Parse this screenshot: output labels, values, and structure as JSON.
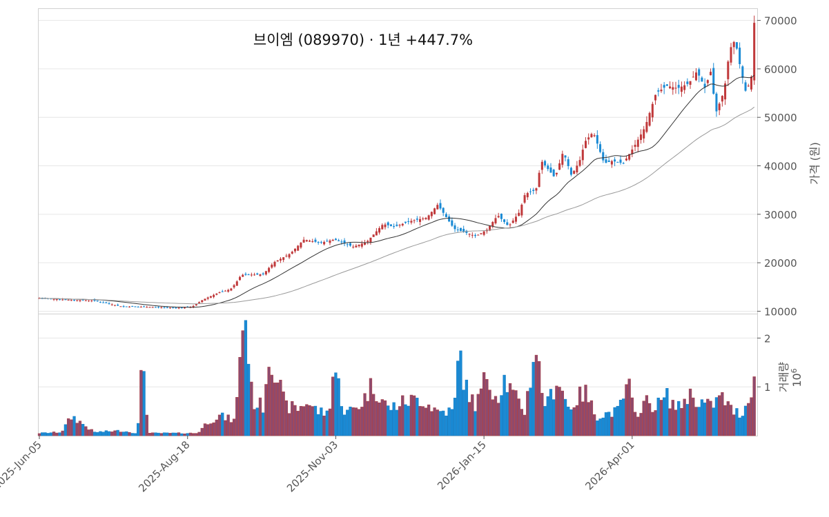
{
  "chart_data": {
    "type": "candlestick",
    "title": "브이엠 (089970)  ·  1년 +447.7%",
    "colors": {
      "up": "#c0393b",
      "down": "#1a8ad4",
      "ma_short": "#333333",
      "ma_long": "#999999",
      "grid": "#e6e6e6"
    },
    "price_panel": {
      "ylabel": "가격 (원)",
      "ylim": [
        9500,
        72500
      ],
      "yticks": [
        10000,
        20000,
        30000,
        40000,
        50000,
        60000,
        70000
      ],
      "yticklabels": [
        "10000",
        "20000",
        "30000",
        "40000",
        "50000",
        "60000",
        "70000"
      ]
    },
    "volume_panel": {
      "ylabel": "거래량",
      "scale_label": "10",
      "scale_exp": "6",
      "ylim": [
        0,
        2.5
      ],
      "yticks": [
        1,
        2
      ],
      "yticklabels": [
        "1",
        "2"
      ]
    },
    "x_axis": {
      "n_days": 247,
      "tick_index": [
        0,
        51,
        102,
        153,
        204
      ],
      "tick_labels": [
        "2025-Jun-05",
        "2025-Aug-18",
        "2025-Nov-03",
        "2026-Jan-15",
        "2026-Apr-01"
      ]
    },
    "price_anchors": [
      [
        0,
        12700
      ],
      [
        12,
        12300
      ],
      [
        20,
        12200
      ],
      [
        25,
        11600
      ],
      [
        30,
        11000
      ],
      [
        38,
        10900
      ],
      [
        45,
        10800
      ],
      [
        52,
        10700
      ],
      [
        56,
        10900
      ],
      [
        60,
        12400
      ],
      [
        66,
        13900
      ],
      [
        70,
        14500
      ],
      [
        72,
        15800
      ],
      [
        74,
        17500
      ],
      [
        82,
        17600
      ],
      [
        86,
        20100
      ],
      [
        92,
        21900
      ],
      [
        97,
        24800
      ],
      [
        103,
        24100
      ],
      [
        108,
        24800
      ],
      [
        115,
        23300
      ],
      [
        120,
        24300
      ],
      [
        126,
        28000
      ],
      [
        130,
        27400
      ],
      [
        136,
        28600
      ],
      [
        142,
        29300
      ],
      [
        146,
        32000
      ],
      [
        152,
        27000
      ],
      [
        160,
        25500
      ],
      [
        164,
        26800
      ],
      [
        168,
        29800
      ],
      [
        172,
        27500
      ],
      [
        176,
        30500
      ],
      [
        178,
        34200
      ],
      [
        182,
        35000
      ],
      [
        184,
        41000
      ],
      [
        189,
        37500
      ],
      [
        192,
        43000
      ],
      [
        195,
        38000
      ],
      [
        198,
        41000
      ],
      [
        200,
        45000
      ],
      [
        203,
        47000
      ],
      [
        207,
        40500
      ],
      [
        210,
        41000
      ],
      [
        214,
        40500
      ],
      [
        218,
        44000
      ],
      [
        222,
        48000
      ],
      [
        226,
        55000
      ],
      [
        230,
        56500
      ],
      [
        234,
        56000
      ],
      [
        238,
        57000
      ],
      [
        241,
        59500
      ],
      [
        244,
        56000
      ],
      [
        246,
        59500
      ],
      [
        248,
        51000
      ],
      [
        251,
        55500
      ],
      [
        253,
        64000
      ],
      [
        255,
        66000
      ],
      [
        257,
        60000
      ],
      [
        259,
        55000
      ],
      [
        261,
        58500
      ],
      [
        262,
        69500
      ]
    ],
    "volume_anchors": [
      [
        0,
        0.05
      ],
      [
        8,
        0.07
      ],
      [
        12,
        0.4
      ],
      [
        20,
        0.07
      ],
      [
        30,
        0.1
      ],
      [
        36,
        0.05
      ],
      [
        38,
        1.7
      ],
      [
        40,
        0.05
      ],
      [
        50,
        0.05
      ],
      [
        58,
        0.05
      ],
      [
        62,
        0.3
      ],
      [
        66,
        0.4
      ],
      [
        72,
        0.3
      ],
      [
        74,
        2.25
      ],
      [
        76,
        2.35
      ],
      [
        78,
        0.7
      ],
      [
        82,
        0.6
      ],
      [
        84,
        1.65
      ],
      [
        86,
        1.5
      ],
      [
        90,
        0.6
      ],
      [
        95,
        0.55
      ],
      [
        98,
        0.7
      ],
      [
        102,
        0.5
      ],
      [
        106,
        0.45
      ],
      [
        108,
        1.45
      ],
      [
        112,
        0.45
      ],
      [
        118,
        0.65
      ],
      [
        122,
        1.05
      ],
      [
        128,
        0.55
      ],
      [
        134,
        0.7
      ],
      [
        140,
        0.75
      ],
      [
        146,
        0.5
      ],
      [
        152,
        0.5
      ],
      [
        154,
        1.8
      ],
      [
        156,
        1.0
      ],
      [
        160,
        0.6
      ],
      [
        164,
        1.25
      ],
      [
        168,
        0.75
      ],
      [
        170,
        1.2
      ],
      [
        174,
        0.8
      ],
      [
        178,
        0.5
      ],
      [
        182,
        1.9
      ],
      [
        184,
        0.95
      ],
      [
        186,
        0.6
      ],
      [
        190,
        1.2
      ],
      [
        194,
        0.55
      ],
      [
        198,
        0.8
      ],
      [
        200,
        0.9
      ],
      [
        204,
        0.4
      ],
      [
        208,
        0.45
      ],
      [
        212,
        0.5
      ],
      [
        216,
        1.05
      ],
      [
        218,
        0.4
      ],
      [
        222,
        0.7
      ],
      [
        226,
        0.6
      ],
      [
        230,
        0.8
      ],
      [
        234,
        0.55
      ],
      [
        238,
        0.85
      ],
      [
        242,
        0.7
      ],
      [
        246,
        0.6
      ],
      [
        250,
        0.8
      ],
      [
        254,
        0.5
      ],
      [
        258,
        0.45
      ],
      [
        262,
        1.2
      ]
    ]
  }
}
